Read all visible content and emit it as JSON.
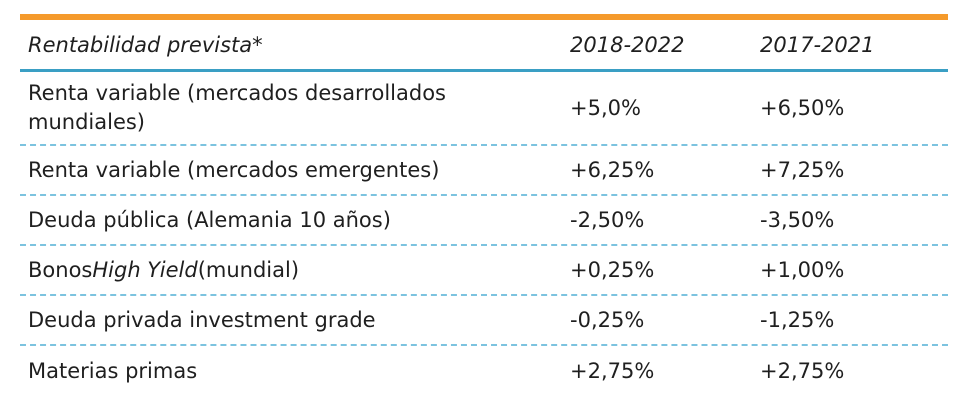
{
  "header": {
    "label": "Rentabilidad prevista*",
    "col_a": "2018-2022",
    "col_b": "2017-2021"
  },
  "rows": [
    {
      "label": "Renta variable (mercados desarrollados mundiales)",
      "a": "+5,0%",
      "b": "+6,50%"
    },
    {
      "label": "Renta variable (mercados emergentes)",
      "a": "+6,25%",
      "b": "+7,25%"
    },
    {
      "label": "Deuda pública (Alemania 10 años)",
      "a": "-2,50%",
      "b": "-3,50%"
    },
    {
      "label_prefix": "Bonos ",
      "label_italic": "High Yield",
      "label_suffix": " (mundial)",
      "a": "+0,25%",
      "b": "+1,00%"
    },
    {
      "label": "Deuda privada investment grade",
      "a": "-0,25%",
      "b": "-1,25%"
    },
    {
      "label": "Materias primas",
      "a": "+2,75%",
      "b": "+2,75%"
    }
  ],
  "colors": {
    "top_bar": "#f59a2b",
    "header_rule": "#3a9fc4",
    "row_divider": "#7cc3df"
  }
}
